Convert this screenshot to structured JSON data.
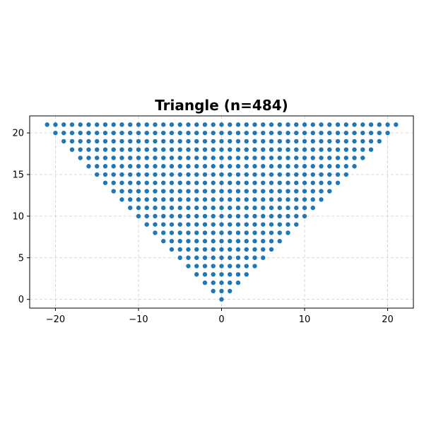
{
  "chart_data": {
    "type": "scatter",
    "title": "Triangle (n=484)",
    "xlabel": "",
    "ylabel": "",
    "xlim": [
      -23.1,
      23.1
    ],
    "ylim": [
      -1.05,
      22.05
    ],
    "xticks": [
      -20,
      -10,
      0,
      10,
      20
    ],
    "yticks": [
      0,
      5,
      10,
      15,
      20
    ],
    "xtick_labels": [
      "−20",
      "−10",
      "0",
      "10",
      "20"
    ],
    "ytick_labels": [
      "0",
      "5",
      "10",
      "15",
      "20"
    ],
    "grid": true,
    "grid_style": "dashed",
    "marker_color": "#1f77b4",
    "point_generation": "integer lattice points (x, y) with y = 0..21 and -y <= x <= y",
    "n_points": 484
  }
}
